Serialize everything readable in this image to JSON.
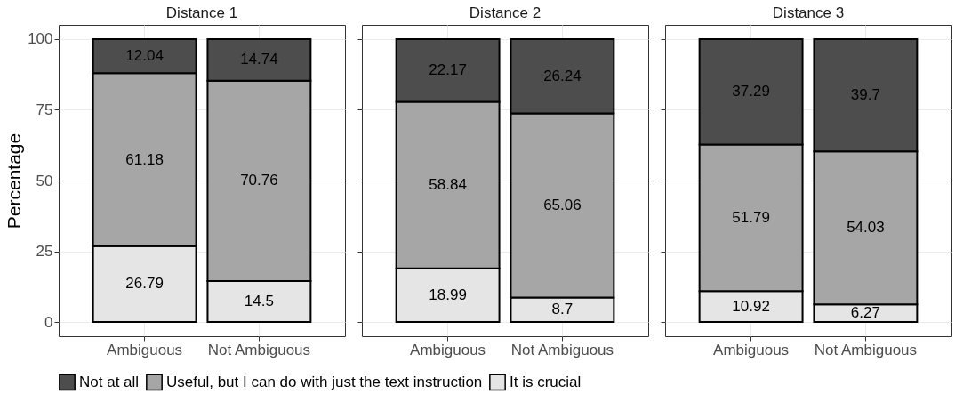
{
  "chart_data": [
    {
      "type": "bar",
      "title": "Distance 1",
      "ylabel": "Percentage",
      "categories": [
        "Ambiguous",
        "Not Ambiguous"
      ],
      "stacked": true,
      "data_labels": true,
      "grid": true,
      "legend": "bottom",
      "ylim": [
        -5,
        105
      ],
      "yticks": [
        0,
        25,
        50,
        75,
        100
      ],
      "series": [
        {
          "name": "It is crucial",
          "color": "#e5e5e5",
          "values": [
            26.79,
            14.5
          ]
        },
        {
          "name": "Useful, but I can do with just the text instruction",
          "color": "#a6a6a6",
          "values": [
            61.18,
            70.76
          ]
        },
        {
          "name": "Not at all",
          "color": "#4d4d4d",
          "values": [
            12.04,
            14.74
          ]
        }
      ]
    },
    {
      "type": "bar",
      "title": "Distance 2",
      "categories": [
        "Ambiguous",
        "Not Ambiguous"
      ],
      "stacked": true,
      "data_labels": true,
      "grid": true,
      "legend": "bottom",
      "tick_labels": "x",
      "ylim": [
        -5,
        105
      ],
      "yticks": [
        0,
        25,
        50,
        75,
        100
      ],
      "series": [
        {
          "name": "It is crucial",
          "color": "#e5e5e5",
          "values": [
            18.99,
            8.7
          ]
        },
        {
          "name": "Useful, but I can do with just the text instruction",
          "color": "#a6a6a6",
          "values": [
            58.84,
            65.06
          ]
        },
        {
          "name": "Not at all",
          "color": "#4d4d4d",
          "values": [
            22.17,
            26.24
          ]
        }
      ]
    },
    {
      "type": "bar",
      "title": "Distance 3",
      "categories": [
        "Ambiguous",
        "Not Ambiguous"
      ],
      "stacked": true,
      "data_labels": true,
      "grid": true,
      "legend": "bottom",
      "tick_labels": "x",
      "ylim": [
        -5,
        105
      ],
      "yticks": [
        0,
        25,
        50,
        75,
        100
      ],
      "series": [
        {
          "name": "It is crucial",
          "color": "#e5e5e5",
          "values": [
            10.92,
            6.27
          ]
        },
        {
          "name": "Useful, but I can do with just the text instruction",
          "color": "#a6a6a6",
          "values": [
            51.79,
            54.03
          ]
        },
        {
          "name": "Not at all",
          "color": "#4d4d4d",
          "values": [
            37.29,
            39.7
          ]
        }
      ]
    }
  ]
}
